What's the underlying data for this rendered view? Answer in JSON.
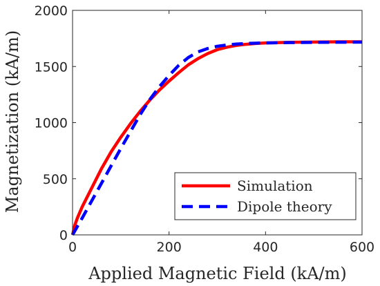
{
  "chart_data": {
    "type": "line",
    "xlabel": "Applied Magnetic Field (kA/m)",
    "ylabel": "Magnetization (kA/m)",
    "xlim": [
      0,
      600
    ],
    "ylim": [
      0,
      2000
    ],
    "xticks": [
      "0",
      "200",
      "400",
      "600"
    ],
    "yticks": [
      "0",
      "500",
      "1000",
      "1500",
      "2000"
    ],
    "grid": false,
    "legend": "bottom-right",
    "series": [
      {
        "name": "Simulation",
        "color": "#ff0000",
        "style": "solid",
        "x": [
          0,
          5,
          10,
          20,
          40,
          60,
          80,
          100,
          120,
          140,
          160,
          180,
          200,
          220,
          240,
          260,
          280,
          300,
          320,
          340,
          360,
          380,
          400,
          450,
          500,
          550,
          600
        ],
        "y": [
          0,
          90,
          150,
          250,
          420,
          590,
          740,
          870,
          990,
          1100,
          1200,
          1290,
          1370,
          1445,
          1515,
          1570,
          1615,
          1650,
          1672,
          1688,
          1698,
          1705,
          1710,
          1715,
          1718,
          1720,
          1720
        ]
      },
      {
        "name": "Dipole theory",
        "color": "#0000ff",
        "style": "dashed",
        "x": [
          0,
          20,
          40,
          60,
          80,
          100,
          120,
          140,
          160,
          180,
          200,
          220,
          240,
          260,
          280,
          300,
          320,
          340,
          360,
          380,
          400,
          450,
          500,
          550,
          600
        ],
        "y": [
          0,
          150,
          305,
          460,
          615,
          770,
          920,
          1070,
          1205,
          1320,
          1420,
          1510,
          1580,
          1630,
          1660,
          1680,
          1692,
          1700,
          1705,
          1708,
          1710,
          1713,
          1715,
          1716,
          1717
        ]
      }
    ]
  }
}
